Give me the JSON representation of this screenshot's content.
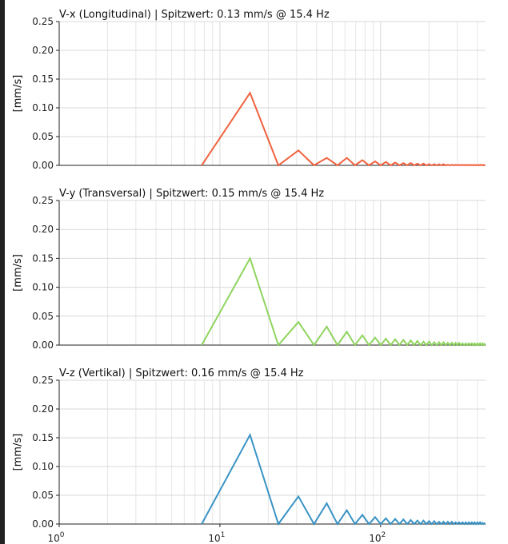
{
  "chart_data": [
    {
      "type": "line",
      "title": "V-x (Longitudinal) | Spitzwert: 0.13 mm/s @ 15.4 Hz",
      "ylabel": "[mm/s]",
      "xlabel": "",
      "xscale": "log",
      "xlim": [
        1,
        450
      ],
      "ylim": [
        0,
        0.25
      ],
      "yticks": [
        "0.00",
        "0.05",
        "0.10",
        "0.15",
        "0.20",
        "0.25"
      ],
      "grid": true,
      "color": "#f0623f",
      "series": [
        {
          "x": [
            7.7,
            15.4,
            23.1,
            30.8,
            38.5,
            46.2,
            53.9,
            61.6,
            69.3,
            77.0,
            84.7,
            92.4,
            100.1,
            107.8,
            115.5,
            123.2,
            130.9,
            138.6,
            146.3,
            154.0,
            161.7,
            169.4,
            177.1,
            184.8,
            192.5,
            200.2,
            207.9,
            215.6,
            223.3,
            231.0,
            238.7,
            246.4,
            254.1,
            261.8,
            269.5,
            277.2,
            284.9,
            292.6,
            300.3,
            308.0,
            315.7,
            323.4,
            331.1,
            338.8,
            346.5,
            354.2,
            361.9,
            369.6,
            377.3,
            385.0,
            392.7,
            400.4,
            408.1,
            415.8,
            423.5,
            431.2,
            438.9,
            446.6
          ],
          "values": [
            0.0,
            0.126,
            0.0,
            0.026,
            0.0,
            0.013,
            0.0,
            0.013,
            0.0,
            0.009,
            0.0,
            0.007,
            0.0,
            0.006,
            0.0,
            0.005,
            0.0,
            0.004,
            0.0,
            0.004,
            0.0,
            0.003,
            0.0,
            0.003,
            0.0,
            0.002,
            0.0,
            0.002,
            0.0,
            0.002,
            0.0,
            0.002,
            0.0,
            0.001,
            0.0,
            0.001,
            0.0,
            0.001,
            0.0,
            0.001,
            0.0,
            0.001,
            0.0,
            0.001,
            0.0,
            0.001,
            0.0,
            0.001,
            0.0,
            0.001,
            0.0,
            0.001,
            0.0,
            0.001,
            0.0,
            0.001,
            0.0,
            0.001
          ]
        }
      ]
    },
    {
      "type": "line",
      "title": "V-y (Transversal) | Spitzwert: 0.15 mm/s @ 15.4 Hz",
      "ylabel": "[mm/s]",
      "xlabel": "",
      "xscale": "log",
      "xlim": [
        1,
        450
      ],
      "ylim": [
        0,
        0.25
      ],
      "yticks": [
        "0.00",
        "0.05",
        "0.10",
        "0.15",
        "0.20",
        "0.25"
      ],
      "grid": true,
      "color": "#8fd45f",
      "series": [
        {
          "x": [
            7.7,
            15.4,
            23.1,
            30.8,
            38.5,
            46.2,
            53.9,
            61.6,
            69.3,
            77.0,
            84.7,
            92.4,
            100.1,
            107.8,
            115.5,
            123.2,
            130.9,
            138.6,
            146.3,
            154.0,
            161.7,
            169.4,
            177.1,
            184.8,
            192.5,
            200.2,
            207.9,
            215.6,
            223.3,
            231.0,
            238.7,
            246.4,
            254.1,
            261.8,
            269.5,
            277.2,
            284.9,
            292.6,
            300.3,
            308.0,
            315.7,
            323.4,
            331.1,
            338.8,
            346.5,
            354.2,
            361.9,
            369.6,
            377.3,
            385.0,
            392.7,
            400.4,
            408.1,
            415.8,
            423.5,
            431.2,
            438.9,
            446.6
          ],
          "values": [
            0.0,
            0.15,
            0.0,
            0.04,
            0.0,
            0.032,
            0.0,
            0.023,
            0.0,
            0.017,
            0.0,
            0.013,
            0.0,
            0.011,
            0.0,
            0.01,
            0.0,
            0.009,
            0.0,
            0.008,
            0.0,
            0.007,
            0.0,
            0.006,
            0.0,
            0.006,
            0.0,
            0.005,
            0.0,
            0.005,
            0.0,
            0.005,
            0.0,
            0.004,
            0.0,
            0.004,
            0.0,
            0.004,
            0.0,
            0.004,
            0.0,
            0.003,
            0.0,
            0.003,
            0.0,
            0.003,
            0.0,
            0.003,
            0.0,
            0.003,
            0.0,
            0.003,
            0.0,
            0.003,
            0.0,
            0.003,
            0.0,
            0.003
          ]
        }
      ]
    },
    {
      "type": "line",
      "title": "V-z (Vertikal) | Spitzwert: 0.16 mm/s @ 15.4 Hz",
      "ylabel": "[mm/s]",
      "xlabel": "",
      "xscale": "log",
      "xlim": [
        1,
        450
      ],
      "ylim": [
        0,
        0.25
      ],
      "yticks": [
        "0.00",
        "0.05",
        "0.10",
        "0.15",
        "0.20",
        "0.25"
      ],
      "xticks": [
        "10",
        "10",
        "10"
      ],
      "xtick_exponents": [
        "0",
        "1",
        "2"
      ],
      "grid": true,
      "color": "#3a93c4",
      "series": [
        {
          "x": [
            7.7,
            15.4,
            23.1,
            30.8,
            38.5,
            46.2,
            53.9,
            61.6,
            69.3,
            77.0,
            84.7,
            92.4,
            100.1,
            107.8,
            115.5,
            123.2,
            130.9,
            138.6,
            146.3,
            154.0,
            161.7,
            169.4,
            177.1,
            184.8,
            192.5,
            200.2,
            207.9,
            215.6,
            223.3,
            231.0,
            238.7,
            246.4,
            254.1,
            261.8,
            269.5,
            277.2,
            284.9,
            292.6,
            300.3,
            308.0,
            315.7,
            323.4,
            331.1,
            338.8,
            346.5,
            354.2,
            361.9,
            369.6,
            377.3,
            385.0,
            392.7,
            400.4,
            408.1,
            415.8,
            423.5,
            431.2,
            438.9,
            446.6
          ],
          "values": [
            0.0,
            0.155,
            0.0,
            0.048,
            0.0,
            0.036,
            0.0,
            0.024,
            0.0,
            0.016,
            0.0,
            0.012,
            0.0,
            0.01,
            0.0,
            0.009,
            0.0,
            0.008,
            0.0,
            0.007,
            0.0,
            0.006,
            0.0,
            0.006,
            0.0,
            0.005,
            0.0,
            0.005,
            0.0,
            0.004,
            0.0,
            0.004,
            0.0,
            0.004,
            0.0,
            0.004,
            0.0,
            0.003,
            0.0,
            0.003,
            0.0,
            0.003,
            0.0,
            0.003,
            0.0,
            0.003,
            0.0,
            0.003,
            0.0,
            0.003,
            0.0,
            0.003,
            0.0,
            0.003,
            0.0,
            0.002,
            0.0,
            0.002
          ]
        }
      ]
    }
  ]
}
